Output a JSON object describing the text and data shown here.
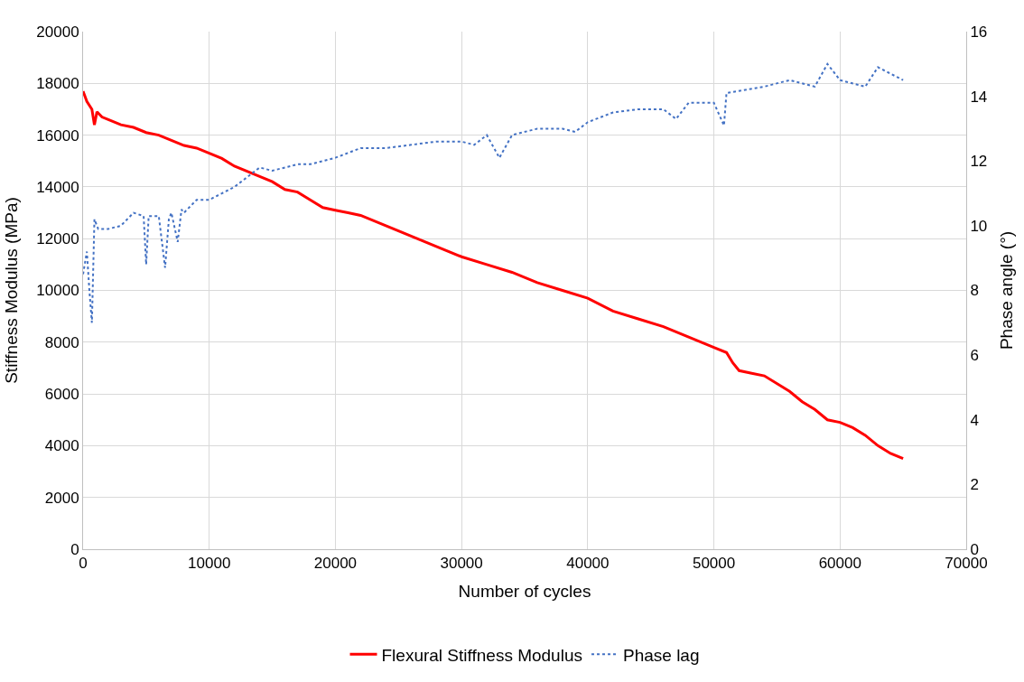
{
  "chart_data": {
    "type": "line",
    "xlabel": "Number of cycles",
    "ylabel": "Stiffness Modulus (MPa)",
    "y2label": "Phase angle (°)",
    "xlim": [
      0,
      70000
    ],
    "xticks": [
      0,
      10000,
      20000,
      30000,
      40000,
      50000,
      60000,
      70000
    ],
    "ylim": [
      0,
      20000
    ],
    "yticks": [
      0,
      2000,
      4000,
      6000,
      8000,
      10000,
      12000,
      14000,
      16000,
      18000,
      20000
    ],
    "y2lim": [
      0,
      16
    ],
    "y2ticks": [
      0,
      2,
      4,
      6,
      8,
      10,
      12,
      14,
      16
    ],
    "grid": true,
    "legend": "bottom",
    "marker": "none",
    "series": [
      {
        "name": "Flexural Stiffness Modulus",
        "color": "#ff0000",
        "line_style": "solid",
        "x": [
          0,
          300,
          700,
          900,
          1100,
          1500,
          2000,
          3000,
          4000,
          5000,
          6000,
          7000,
          8000,
          9000,
          10000,
          11000,
          12000,
          13000,
          14000,
          15000,
          16000,
          17000,
          18000,
          19000,
          20000,
          21000,
          22000,
          24000,
          26000,
          28000,
          30000,
          32000,
          34000,
          36000,
          38000,
          40000,
          42000,
          44000,
          46000,
          48000,
          50000,
          51000,
          51500,
          52000,
          53000,
          54000,
          56000,
          57000,
          58000,
          59000,
          60000,
          61000,
          62000,
          63000,
          64000,
          65000
        ],
        "values": [
          17700,
          17300,
          17000,
          16400,
          16900,
          16700,
          16600,
          16400,
          16300,
          16100,
          16000,
          15800,
          15600,
          15500,
          15300,
          15100,
          14800,
          14600,
          14400,
          14200,
          13900,
          13800,
          13500,
          13200,
          13100,
          13000,
          12900,
          12500,
          12100,
          11700,
          11300,
          11000,
          10700,
          10300,
          10000,
          9700,
          9200,
          8900,
          8600,
          8200,
          7800,
          7600,
          7200,
          6900,
          6800,
          6700,
          6100,
          5700,
          5400,
          5000,
          4900,
          4700,
          4400,
          4000,
          3700,
          3500
        ]
      },
      {
        "name": "Phase lag",
        "color": "#4472c4",
        "line_style": "dotted",
        "axis": "y2",
        "x": [
          0,
          300,
          500,
          700,
          900,
          1200,
          1500,
          2000,
          3000,
          4000,
          4800,
          5000,
          5200,
          5500,
          6000,
          6500,
          6800,
          7000,
          7500,
          7800,
          8000,
          9000,
          10000,
          11000,
          12000,
          13000,
          14000,
          15000,
          16000,
          17000,
          18000,
          19000,
          20000,
          22000,
          24000,
          26000,
          28000,
          30000,
          31000,
          32000,
          33000,
          34000,
          36000,
          38000,
          39000,
          40000,
          42000,
          44000,
          46000,
          47000,
          48000,
          50000,
          50800,
          51000,
          54000,
          56000,
          58000,
          59000,
          60000,
          62000,
          63000,
          65000
        ],
        "values": [
          8.5,
          9.2,
          8.0,
          7.0,
          10.2,
          9.9,
          9.9,
          9.9,
          10.0,
          10.4,
          10.3,
          8.8,
          10.3,
          10.3,
          10.3,
          8.7,
          10.2,
          10.4,
          9.5,
          10.5,
          10.4,
          10.8,
          10.8,
          11.0,
          11.2,
          11.5,
          11.8,
          11.7,
          11.8,
          11.9,
          11.9,
          12.0,
          12.1,
          12.4,
          12.4,
          12.5,
          12.6,
          12.6,
          12.5,
          12.8,
          12.1,
          12.8,
          13.0,
          13.0,
          12.9,
          13.2,
          13.5,
          13.6,
          13.6,
          13.3,
          13.8,
          13.8,
          13.1,
          14.1,
          14.3,
          14.5,
          14.3,
          15.0,
          14.5,
          14.3,
          14.9,
          14.5
        ]
      }
    ]
  }
}
